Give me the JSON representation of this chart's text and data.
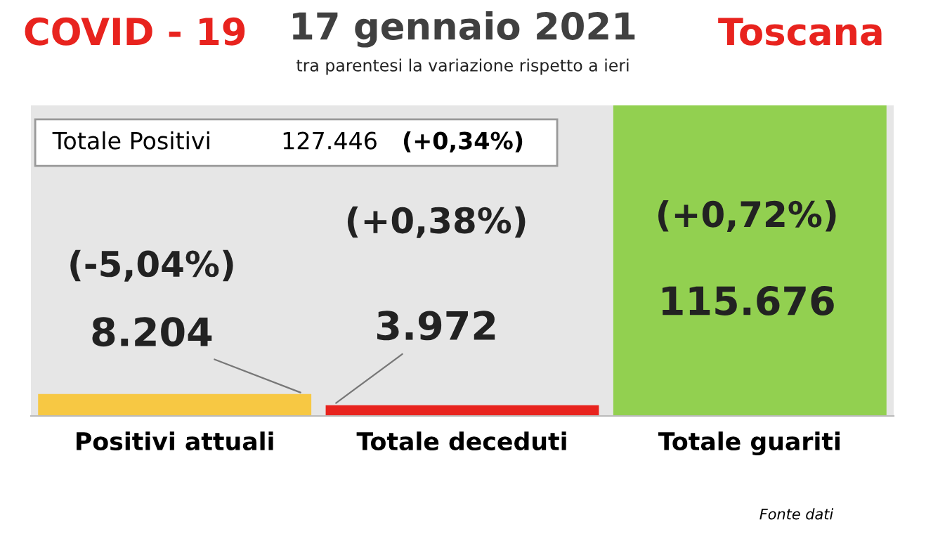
{
  "chart_data": {
    "type": "bar",
    "title": "17 gennaio 2021",
    "subtitle": "tra parentesi la variazione rispetto a ieri",
    "categories": [
      "Positivi attuali",
      "Totale deceduti",
      "Totale guariti"
    ],
    "values": [
      8204,
      3972,
      115676
    ],
    "colors": [
      "#f7c843",
      "#e8231e",
      "#92d050"
    ],
    "value_labels": [
      "8.204",
      "3.972",
      "115.676"
    ],
    "annotations": [
      "COVID - 19",
      "Toscana",
      "Totale Positivi",
      "127.446",
      "(+0,34%)",
      "(-5,04%)",
      "(+0,38%)",
      "(+0,72%)",
      "Fonte dati"
    ],
    "grid": false,
    "legend": false
  }
}
